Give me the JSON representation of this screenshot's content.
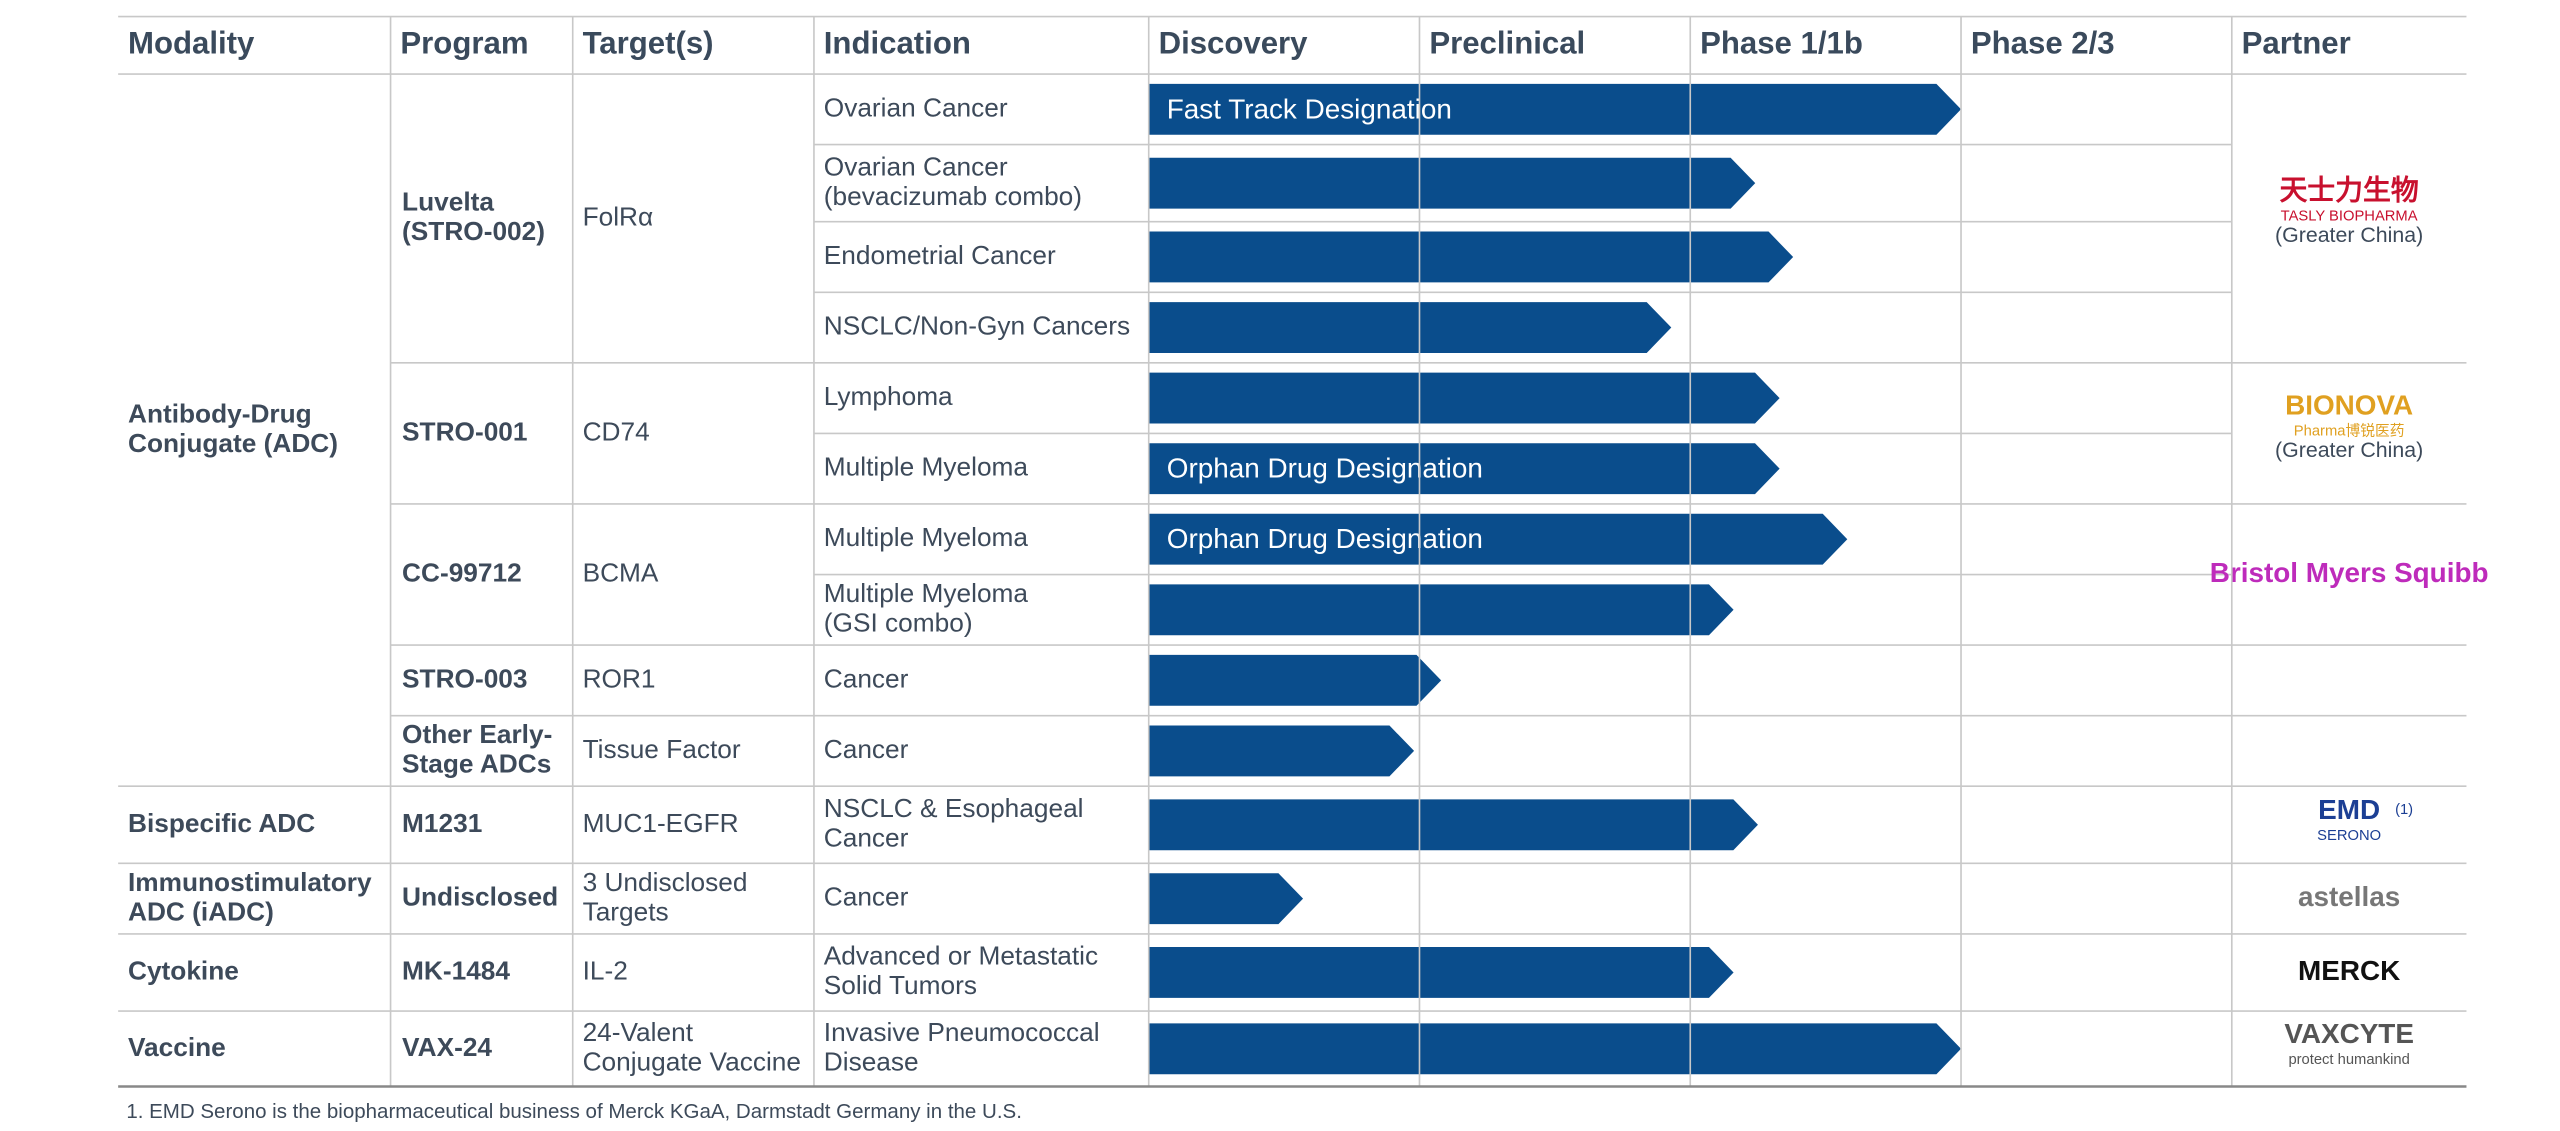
{
  "header": {
    "columns": [
      "Modality",
      "Program",
      "Target(s)",
      "Indication",
      "Discovery",
      "Preclinical",
      "Phase 1/1b",
      "Phase 2/3",
      "Partner"
    ]
  },
  "bar_color": "#0a4d8c",
  "groups": [
    {
      "modality": [
        "Antibody-Drug",
        "Conjugate (ADC)"
      ],
      "programs": [
        {
          "program": [
            "Luvelta",
            "(STRO-002)"
          ],
          "target": [
            "FolRα"
          ],
          "partner": {
            "logo": [
              "天士力生物",
              "TASLY BIOPHARMA"
            ],
            "region": "(Greater China)",
            "color": "#c8102e"
          },
          "indications": [
            {
              "name": [
                "Ovarian Cancer"
              ],
              "progress": 3.0,
              "designation": "Fast Track Designation"
            },
            {
              "name": [
                "Ovarian Cancer",
                "(bevacizumab combo)"
              ],
              "progress": 2.24
            },
            {
              "name": [
                "Endometrial Cancer"
              ],
              "progress": 2.38
            },
            {
              "name": [
                "NSCLC/Non-Gyn Cancers"
              ],
              "progress": 1.93
            }
          ]
        },
        {
          "program": [
            "STRO-001"
          ],
          "target": [
            "CD74"
          ],
          "partner": {
            "logo": [
              "BIONOVA",
              "Pharma博锐医药"
            ],
            "region": "(Greater China)",
            "color": "#e0a020"
          },
          "indications": [
            {
              "name": [
                "Lymphoma"
              ],
              "progress": 2.33
            },
            {
              "name": [
                "Multiple Myeloma"
              ],
              "progress": 2.33,
              "designation": "Orphan Drug Designation"
            }
          ]
        },
        {
          "program": [
            "CC-99712"
          ],
          "target": [
            "BCMA"
          ],
          "partner": {
            "logo": [
              "Bristol Myers Squibb"
            ],
            "color": "#be2bbb"
          },
          "indications": [
            {
              "name": [
                "Multiple Myeloma"
              ],
              "progress": 2.58,
              "designation": "Orphan Drug Designation"
            },
            {
              "name": [
                "Multiple Myeloma",
                "(GSI combo)"
              ],
              "progress": 2.16
            }
          ]
        },
        {
          "program": [
            "STRO-003"
          ],
          "target": [
            "ROR1"
          ],
          "indications": [
            {
              "name": [
                "Cancer"
              ],
              "progress": 1.08
            }
          ]
        },
        {
          "program": [
            "Other Early-",
            "Stage ADCs"
          ],
          "target": [
            "Tissue Factor"
          ],
          "indications": [
            {
              "name": [
                "Cancer"
              ],
              "progress": 0.98
            }
          ]
        }
      ]
    },
    {
      "modality": [
        "Bispecific ADC"
      ],
      "programs": [
        {
          "program": [
            "M1231"
          ],
          "target": [
            "MUC1-EGFR"
          ],
          "partner": {
            "logo": [
              "EMD",
              "SERONO"
            ],
            "marker": "(1)",
            "color": "#1c3f94"
          },
          "indications": [
            {
              "name": [
                "NSCLC & Esophageal",
                "Cancer"
              ],
              "progress": 2.25
            }
          ]
        }
      ]
    },
    {
      "modality": [
        "Immunostimulatory",
        "ADC (iADC)"
      ],
      "programs": [
        {
          "program": [
            "Undisclosed"
          ],
          "target": [
            "3 Undisclosed",
            "Targets"
          ],
          "partner": {
            "logo": [
              "astellas"
            ],
            "color": "#777777"
          },
          "indications": [
            {
              "name": [
                "Cancer"
              ],
              "progress": 0.57
            }
          ]
        }
      ]
    },
    {
      "modality": [
        "Cytokine"
      ],
      "programs": [
        {
          "program": [
            "MK-1484"
          ],
          "target": [
            "IL-2"
          ],
          "partner": {
            "logo": [
              "MERCK"
            ],
            "color": "#111111"
          },
          "indications": [
            {
              "name": [
                "Advanced or Metastatic",
                "Solid Tumors"
              ],
              "progress": 2.16
            }
          ]
        }
      ]
    },
    {
      "modality": [
        "Vaccine"
      ],
      "programs": [
        {
          "program": [
            "VAX-24"
          ],
          "target": [
            "24-Valent",
            "Conjugate Vaccine"
          ],
          "partner": {
            "logo": [
              "VAXCYTE",
              "protect humankind"
            ],
            "color": "#555555"
          },
          "indications": [
            {
              "name": [
                "Invasive Pneumococcal",
                "Disease"
              ],
              "progress": 3.0
            }
          ]
        }
      ]
    }
  ],
  "footnote": "1. EMD Serono is the biopharmaceutical business of Merck KGaA, Darmstadt Germany in the U.S."
}
